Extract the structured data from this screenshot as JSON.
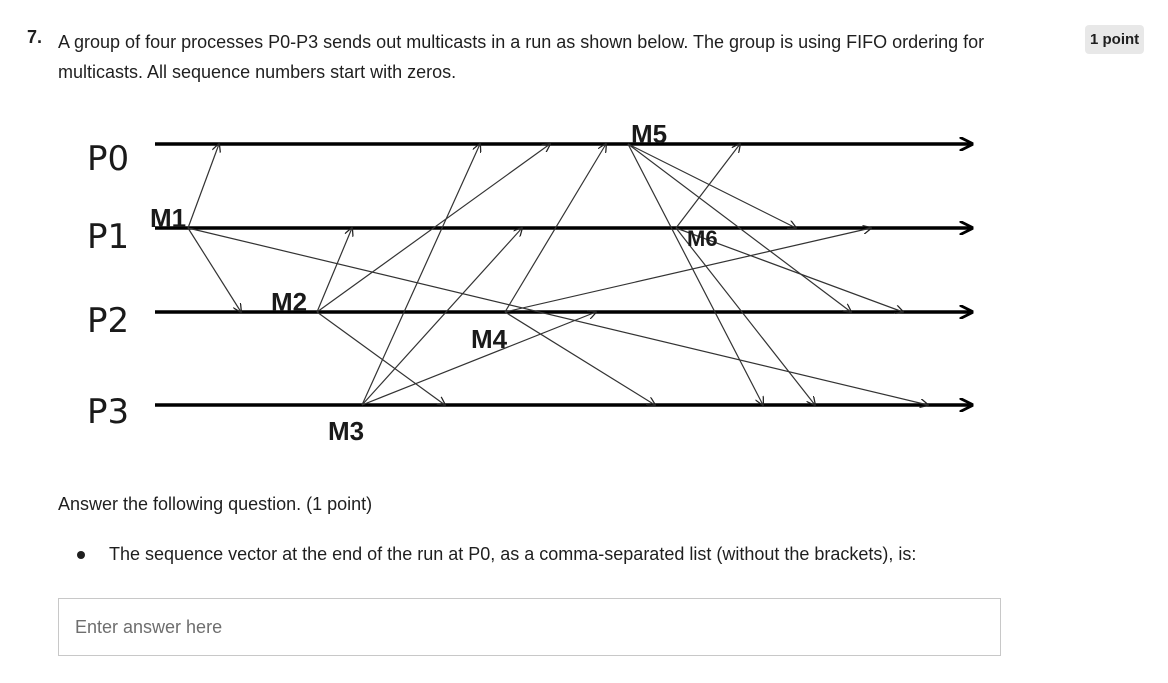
{
  "question": {
    "number": "7.",
    "text": "A group of four processes P0-P3 sends out multicasts in a run as shown below. The group is using FIFO ordering for multicasts. All sequence numbers start with zeros.",
    "points_badge": "1 point"
  },
  "diagram": {
    "processes": [
      "P0",
      "P1",
      "P2",
      "P3"
    ],
    "messages": [
      "M1",
      "M2",
      "M3",
      "M4",
      "M5",
      "M6"
    ]
  },
  "instruction": "Answer the following question. (1 point)",
  "prompt": "The sequence vector at the end of the run at P0, as a comma-separated list (without the brackets), is:",
  "answer": {
    "value": "",
    "placeholder": "Enter answer here"
  }
}
